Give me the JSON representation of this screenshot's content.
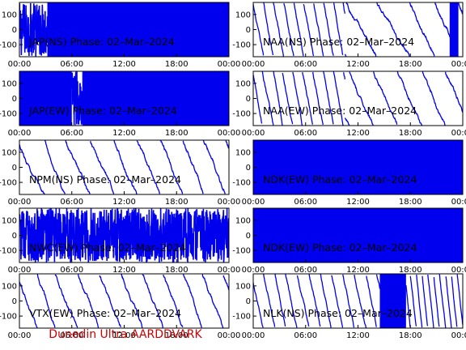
{
  "footer": "Dunedin Ultra AARDDVARK",
  "colors": {
    "trace": "#0000ee",
    "axes": "#000000",
    "footer": "#cc0000",
    "background": "#ffffff"
  },
  "chart_data": [
    {
      "type": "line",
      "station": "JAP",
      "component": "NS",
      "label": "JAP(NS) Phase: 02–Mar–2024",
      "xlim": [
        0,
        24
      ],
      "ylim": [
        -180,
        180
      ],
      "yticks": [
        100,
        0,
        -100
      ],
      "xticks": [
        "00:00",
        "06:00",
        "12:00",
        "18:00",
        "00:00"
      ],
      "segments": [
        {
          "t0": 0,
          "t1": 3.2,
          "kind": "noise"
        },
        {
          "t0": 3.2,
          "t1": 24,
          "kind": "fill"
        }
      ]
    },
    {
      "type": "line",
      "station": "NAA",
      "component": "NS",
      "label": "NAA(NS) Phase: 02–Mar–2024",
      "xlim": [
        0,
        24
      ],
      "ylim": [
        -180,
        180
      ],
      "yticks": [
        100,
        0,
        -100
      ],
      "xticks": [
        "00:00",
        "06:00",
        "12:00",
        "18:00",
        "00:00"
      ],
      "segments": [
        {
          "t0": 0,
          "t1": 10.5,
          "kind": "sawtooth"
        },
        {
          "t0": 10.5,
          "t1": 24,
          "kind": "sawtooth"
        },
        {
          "t0": 22.5,
          "t1": 23.5,
          "kind": "fill"
        }
      ]
    },
    {
      "type": "line",
      "station": "JAP",
      "component": "EW",
      "label": "JAP(EW) Phase: 02–Mar–2024",
      "xlim": [
        0,
        24
      ],
      "ylim": [
        -180,
        180
      ],
      "yticks": [
        100,
        0,
        -100
      ],
      "xticks": [
        "00:00",
        "06:00",
        "12:00",
        "18:00",
        "00:00"
      ],
      "segments": [
        {
          "t0": 0,
          "t1": 6.0,
          "kind": "fill"
        },
        {
          "t0": 6.0,
          "t1": 7.2,
          "kind": "noise"
        },
        {
          "t0": 7.2,
          "t1": 24,
          "kind": "fill"
        }
      ]
    },
    {
      "type": "line",
      "station": "NAA",
      "component": "EW",
      "label": "NAA(EW) Phase: 02–Mar–2024",
      "xlim": [
        0,
        24
      ],
      "ylim": [
        -180,
        180
      ],
      "yticks": [
        100,
        0,
        -100
      ],
      "xticks": [
        "00:00",
        "06:00",
        "12:00",
        "18:00",
        "00:00"
      ],
      "segments": [
        {
          "t0": 0,
          "t1": 10.5,
          "kind": "sawtooth"
        },
        {
          "t0": 10.5,
          "t1": 24,
          "kind": "sawtooth"
        }
      ]
    },
    {
      "type": "line",
      "station": "NPM",
      "component": "NS",
      "label": "NPM(NS) Phase: 02–Mar–2024",
      "xlim": [
        0,
        24
      ],
      "ylim": [
        -180,
        180
      ],
      "yticks": [
        100,
        0,
        -100
      ],
      "xticks": [
        "00:00",
        "06:00",
        "12:00",
        "18:00",
        "00:00"
      ],
      "segments": [
        {
          "t0": 0,
          "t1": 24,
          "kind": "sawtooth"
        }
      ]
    },
    {
      "type": "line",
      "station": "NDK",
      "component": "EW",
      "label": "NDK(EW) Phase: 02–Mar–2024",
      "xlim": [
        0,
        24
      ],
      "ylim": [
        -180,
        180
      ],
      "yticks": [
        100,
        0,
        -100
      ],
      "xticks": [
        "00:00",
        "06:00",
        "12:00",
        "18:00",
        "00:00"
      ],
      "segments": [
        {
          "t0": 0,
          "t1": 24,
          "kind": "fill"
        }
      ]
    },
    {
      "type": "line",
      "station": "NWC",
      "component": "EW",
      "label": "NWC(EW) Phase: 02–Mar–2024",
      "xlim": [
        0,
        24
      ],
      "ylim": [
        -180,
        180
      ],
      "yticks": [
        100,
        0,
        -100
      ],
      "xticks": [
        "00:00",
        "06:00",
        "12:00",
        "18:00",
        "00:00"
      ],
      "segments": [
        {
          "t0": 0,
          "t1": 24,
          "kind": "noise"
        }
      ]
    },
    {
      "type": "line",
      "station": "NDK",
      "component": "EW",
      "label": "NDK(EW) Phase: 02–Mar–2024",
      "xlim": [
        0,
        24
      ],
      "ylim": [
        -180,
        180
      ],
      "yticks": [
        100,
        0,
        -100
      ],
      "xticks": [
        "00:00",
        "06:00",
        "12:00",
        "18:00",
        "00:00"
      ],
      "segments": [
        {
          "t0": 0,
          "t1": 24,
          "kind": "fill"
        }
      ]
    },
    {
      "type": "line",
      "station": "VTX",
      "component": "EW",
      "label": "VTX(EW) Phase: 02–Mar–2024",
      "xlim": [
        0,
        24
      ],
      "ylim": [
        -180,
        180
      ],
      "yticks": [
        100,
        0,
        -100
      ],
      "xticks": [
        "00:00",
        "06:00",
        "12:00",
        "18:00",
        "00:00"
      ],
      "segments": [
        {
          "t0": 0,
          "t1": 24,
          "kind": "sawtooth"
        }
      ]
    },
    {
      "type": "line",
      "station": "NLK",
      "component": "NS",
      "label": "NLK(NS) Phase: 02–Mar–2024",
      "xlim": [
        0,
        24
      ],
      "ylim": [
        -180,
        180
      ],
      "yticks": [
        100,
        0,
        -100
      ],
      "xticks": [
        "00:00",
        "06:00",
        "12:00",
        "18:00",
        "00:00"
      ],
      "segments": [
        {
          "t0": 0,
          "t1": 14.5,
          "kind": "sawtooth"
        },
        {
          "t0": 14.5,
          "t1": 17.5,
          "kind": "fill"
        },
        {
          "t0": 17.5,
          "t1": 24,
          "kind": "sawtooth"
        }
      ]
    }
  ]
}
